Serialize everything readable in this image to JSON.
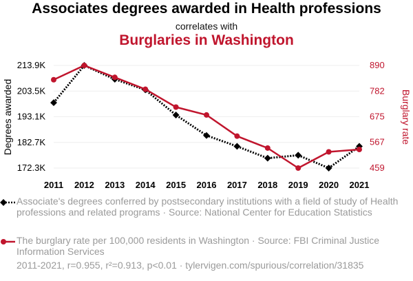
{
  "header": {
    "title": "Associates degrees awarded in Health professions",
    "connector": "correlates with",
    "subtitle": "Burglaries in Washington"
  },
  "chart_data": {
    "type": "line",
    "x": [
      2011,
      2012,
      2013,
      2014,
      2015,
      2016,
      2017,
      2018,
      2019,
      2020,
      2021
    ],
    "x_ticks": [
      "2011",
      "2012",
      "2013",
      "2014",
      "2015",
      "2016",
      "2017",
      "2018",
      "2019",
      "2020",
      "2021"
    ],
    "left_axis": {
      "label": "Degrees awarded",
      "ticks": [
        "172.3K",
        "182.7K",
        "193.1K",
        "203.5K",
        "213.9K"
      ],
      "tick_values": [
        172300,
        182700,
        193100,
        203500,
        213900
      ],
      "range": [
        172300,
        213900
      ]
    },
    "right_axis": {
      "label": "Burglary rate",
      "ticks": [
        "459",
        "567",
        "675",
        "782",
        "890"
      ],
      "tick_values": [
        459,
        567,
        675,
        782,
        890
      ],
      "range": [
        459,
        890
      ]
    },
    "series": [
      {
        "name": "Associate's degrees conferred by postsecondary institutions with a field of study of Health professions and related programs · Source: National Center for Education Statistics",
        "axis": "left",
        "style": "dotted",
        "marker": "diamond",
        "color": "#000000",
        "values": [
          198800,
          213900,
          208300,
          204000,
          193800,
          185500,
          181100,
          176300,
          177500,
          172300,
          181100
        ]
      },
      {
        "name": "The burglary rate per 100,000 residents in Washington · Source: FBI Criminal Justice Information Services",
        "axis": "right",
        "style": "solid",
        "marker": "circle",
        "color": "#c0152d",
        "values": [
          830,
          890,
          840,
          790,
          715,
          682,
          593,
          543,
          459,
          527,
          537
        ]
      }
    ],
    "grid": true
  },
  "footer": {
    "text": "2011-2021, r=0.955, r²=0.913, p<0.01 · tylervigen.com/spurious/correlation/31835"
  }
}
